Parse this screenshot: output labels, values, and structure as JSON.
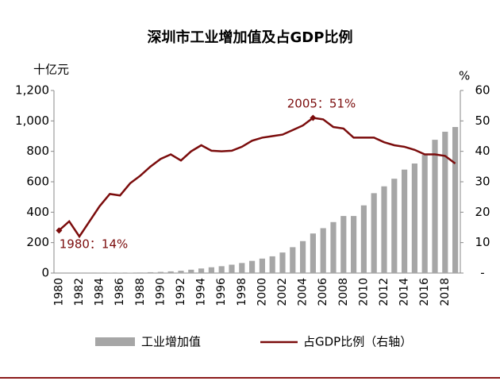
{
  "chart_data": {
    "type": "bar-line",
    "title": "深圳市工业增加值及占GDP比例",
    "y_label": "十亿元",
    "y2_label": "%",
    "categories": [
      "1980",
      null,
      "1982",
      null,
      "1984",
      null,
      "1986",
      null,
      "1988",
      null,
      "1990",
      null,
      "1992",
      null,
      "1994",
      null,
      "1996",
      null,
      "1998",
      null,
      "2000",
      null,
      "2002",
      null,
      "2004",
      null,
      "2006",
      null,
      "2008",
      null,
      "2010",
      null,
      "2012",
      null,
      "2014",
      null,
      "2016",
      null,
      "2018",
      null
    ],
    "series": [
      {
        "name": "工业增加值",
        "type": "bar",
        "color": "#a6a6a6",
        "values": [
          0.1,
          0.2,
          0.3,
          0.5,
          0.9,
          1.5,
          1.8,
          2.5,
          3.8,
          5.5,
          7.5,
          11,
          15,
          22,
          30,
          38,
          45,
          55,
          66,
          80,
          95,
          110,
          135,
          170,
          210,
          260,
          295,
          335,
          375,
          375,
          445,
          525,
          570,
          620,
          680,
          720,
          777,
          876,
          929,
          960
        ]
      },
      {
        "name": "占GDP比例（右轴）",
        "type": "line",
        "axis": "y2",
        "color": "#7b0c0c",
        "values": [
          14,
          17,
          12,
          17,
          22,
          26,
          25.5,
          29.5,
          32,
          35,
          37.5,
          39,
          37,
          40,
          42,
          40.2,
          40,
          40.2,
          41.5,
          43.5,
          44.5,
          45,
          45.5,
          47,
          48.5,
          51,
          50.5,
          48,
          47.5,
          44.5,
          44.5,
          44.5,
          43,
          42,
          41.5,
          40.5,
          39,
          39,
          38.5,
          36
        ]
      }
    ],
    "ylim": [
      0,
      1200
    ],
    "yticks": [
      0,
      200,
      400,
      600,
      800,
      {
        "value": 1000,
        "label": "1,000"
      },
      {
        "value": 1200,
        "label": "1,200"
      }
    ],
    "y2lim": [
      0,
      60
    ],
    "y2ticks": [
      {
        "value": 0,
        "label": "-"
      },
      10,
      20,
      30,
      40,
      50,
      60
    ],
    "annotations": [
      {
        "text": "2005：51%"
      },
      {
        "text": "1980：14%"
      }
    ]
  }
}
